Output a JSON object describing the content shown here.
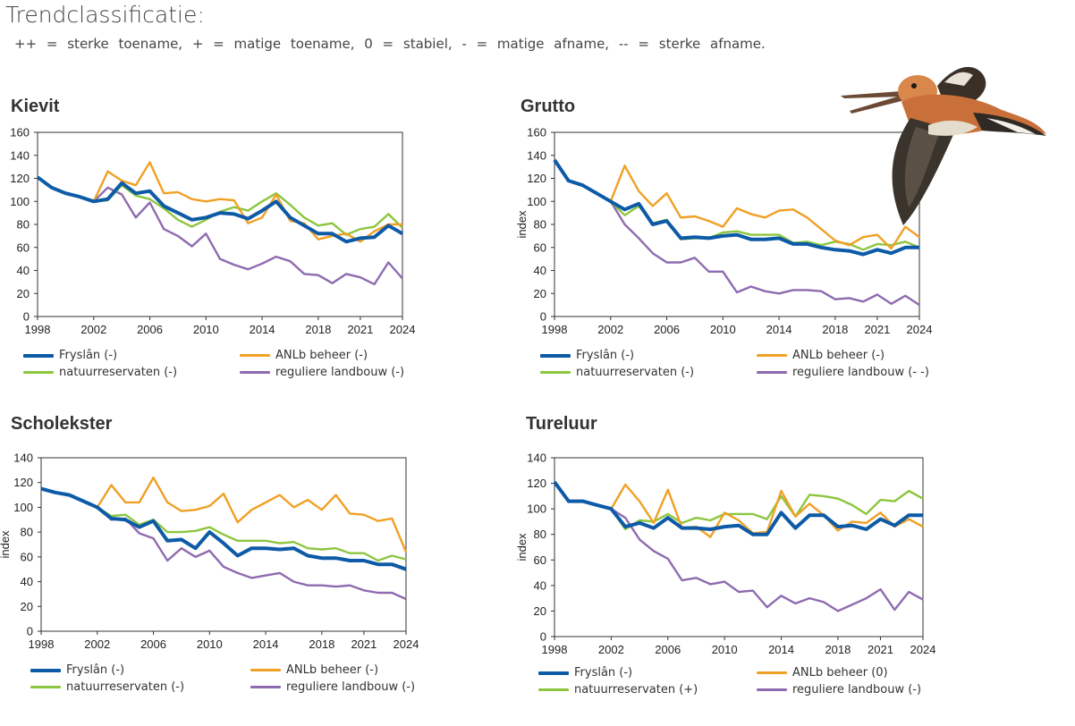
{
  "header": {
    "title": "Trendclassificatie:",
    "subtitle": "++ = sterke toename, + = matige toename, 0 = stabiel, - = matige afname, -- = sterke afname."
  },
  "colors": {
    "fryslan": "#0d5aa7",
    "anlb": "#f0a024",
    "natuur": "#8cc63f",
    "regulier": "#8e6bb0"
  },
  "chart_data": [
    {
      "type": "line",
      "title": "Kievit",
      "ylabel": "",
      "ylim": [
        0,
        160
      ],
      "yticks": [
        0,
        20,
        40,
        60,
        80,
        100,
        120,
        140,
        160
      ],
      "xticks": [
        "1998",
        "2002",
        "2006",
        "2010",
        "2014",
        "2018",
        "2021",
        "2024"
      ],
      "x": [
        1998,
        1999,
        2000,
        2001,
        2002,
        2003,
        2004,
        2005,
        2006,
        2007,
        2008,
        2009,
        2010,
        2011,
        2012,
        2013,
        2014,
        2015,
        2016,
        2017,
        2018,
        2019,
        2020,
        2021,
        2022,
        2023,
        2024
      ],
      "series": [
        {
          "key": "fryslan",
          "name": "Fryslân (-)",
          "values": [
            121,
            112,
            107,
            104,
            100,
            102,
            116,
            107,
            109,
            96,
            90,
            84,
            86,
            90,
            89,
            85,
            92,
            100,
            86,
            79,
            72,
            72,
            65,
            68,
            69,
            79,
            72
          ]
        },
        {
          "key": "anlb",
          "name": "ANLb beheer (-)",
          "values": [
            null,
            null,
            null,
            null,
            100,
            126,
            118,
            114,
            134,
            107,
            108,
            102,
            100,
            102,
            101,
            81,
            86,
            106,
            83,
            81,
            67,
            70,
            72,
            65,
            74,
            80,
            80
          ]
        },
        {
          "key": "natuur",
          "name": "natuurreservaten (-)",
          "values": [
            null,
            null,
            null,
            null,
            100,
            101,
            114,
            105,
            102,
            94,
            84,
            78,
            84,
            91,
            95,
            92,
            100,
            107,
            97,
            86,
            79,
            81,
            71,
            76,
            78,
            89,
            77
          ]
        },
        {
          "key": "regulier",
          "name": "reguliere landbouw (-)",
          "values": [
            null,
            null,
            null,
            null,
            100,
            112,
            106,
            86,
            99,
            76,
            70,
            61,
            72,
            50,
            45,
            41,
            46,
            52,
            48,
            37,
            36,
            29,
            37,
            34,
            28,
            47,
            33
          ]
        }
      ]
    },
    {
      "type": "line",
      "title": "Grutto",
      "ylabel": "index",
      "ylim": [
        0,
        160
      ],
      "yticks": [
        0,
        20,
        40,
        60,
        80,
        100,
        120,
        140,
        160
      ],
      "xticks": [
        "1998",
        "2002",
        "2006",
        "2010",
        "2014",
        "2018",
        "2021",
        "2024"
      ],
      "x": [
        1998,
        1999,
        2000,
        2001,
        2002,
        2003,
        2004,
        2005,
        2006,
        2007,
        2008,
        2009,
        2010,
        2011,
        2012,
        2013,
        2014,
        2015,
        2016,
        2017,
        2018,
        2019,
        2020,
        2021,
        2022,
        2023,
        2024
      ],
      "series": [
        {
          "key": "fryslan",
          "name": "Fryslân (-)",
          "values": [
            136,
            118,
            114,
            107,
            100,
            93,
            98,
            80,
            83,
            68,
            69,
            68,
            70,
            71,
            67,
            67,
            68,
            63,
            63,
            60,
            58,
            57,
            54,
            58,
            55,
            60,
            60
          ]
        },
        {
          "key": "anlb",
          "name": "ANLb beheer (-)",
          "values": [
            null,
            null,
            null,
            null,
            100,
            131,
            109,
            96,
            107,
            86,
            87,
            83,
            78,
            94,
            89,
            86,
            92,
            93,
            86,
            76,
            66,
            62,
            69,
            71,
            59,
            78,
            69
          ]
        },
        {
          "key": "natuur",
          "name": "natuurreservaten (-)",
          "values": [
            null,
            null,
            null,
            null,
            100,
            88,
            96,
            81,
            84,
            67,
            68,
            68,
            73,
            74,
            71,
            71,
            71,
            64,
            65,
            62,
            65,
            63,
            58,
            63,
            62,
            65,
            60
          ]
        },
        {
          "key": "regulier",
          "name": "reguliere landbouw (- -)",
          "values": [
            null,
            null,
            null,
            null,
            100,
            80,
            68,
            55,
            47,
            47,
            51,
            39,
            39,
            21,
            26,
            22,
            20,
            23,
            23,
            22,
            15,
            16,
            13,
            19,
            11,
            18,
            10
          ]
        }
      ]
    },
    {
      "type": "line",
      "title": "Scholekster",
      "ylabel": "index",
      "ylim": [
        0,
        140
      ],
      "yticks": [
        0,
        20,
        40,
        60,
        80,
        100,
        120,
        140
      ],
      "xticks": [
        "1998",
        "2002",
        "2006",
        "2010",
        "2014",
        "2018",
        "2021",
        "2024"
      ],
      "x": [
        1998,
        1999,
        2000,
        2001,
        2002,
        2003,
        2004,
        2005,
        2006,
        2007,
        2008,
        2009,
        2010,
        2011,
        2012,
        2013,
        2014,
        2015,
        2016,
        2017,
        2018,
        2019,
        2020,
        2021,
        2022,
        2023,
        2024
      ],
      "series": [
        {
          "key": "fryslan",
          "name": "Fryslân (-)",
          "values": [
            115,
            112,
            110,
            105,
            100,
            91,
            90,
            84,
            89,
            73,
            74,
            67,
            80,
            71,
            61,
            67,
            67,
            66,
            67,
            61,
            59,
            59,
            57,
            57,
            54,
            54,
            50
          ]
        },
        {
          "key": "anlb",
          "name": "ANLb beheer (-)",
          "values": [
            null,
            null,
            null,
            null,
            100,
            118,
            104,
            104,
            124,
            104,
            97,
            98,
            101,
            111,
            88,
            98,
            104,
            110,
            100,
            106,
            98,
            110,
            95,
            94,
            89,
            91,
            64
          ]
        },
        {
          "key": "natuur",
          "name": "natuurreservaten (-)",
          "values": [
            null,
            null,
            null,
            null,
            100,
            93,
            94,
            86,
            90,
            80,
            80,
            81,
            84,
            78,
            73,
            73,
            73,
            71,
            72,
            67,
            66,
            67,
            63,
            63,
            57,
            61,
            58
          ]
        },
        {
          "key": "regulier",
          "name": "reguliere landbouw (-)",
          "values": [
            null,
            null,
            null,
            null,
            100,
            90,
            91,
            79,
            75,
            57,
            67,
            60,
            65,
            52,
            47,
            43,
            45,
            47,
            40,
            37,
            37,
            36,
            37,
            33,
            31,
            31,
            26
          ]
        }
      ]
    },
    {
      "type": "line",
      "title": "Tureluur",
      "ylabel": "index",
      "ylim": [
        0,
        140
      ],
      "yticks": [
        0,
        20,
        40,
        60,
        80,
        100,
        120,
        140
      ],
      "xticks": [
        "1998",
        "2002",
        "2006",
        "2010",
        "2014",
        "2018",
        "2021",
        "2024"
      ],
      "x": [
        1998,
        1999,
        2000,
        2001,
        2002,
        2003,
        2004,
        2005,
        2006,
        2007,
        2008,
        2009,
        2010,
        2011,
        2012,
        2013,
        2014,
        2015,
        2016,
        2017,
        2018,
        2019,
        2020,
        2021,
        2022,
        2023,
        2024
      ],
      "series": [
        {
          "key": "fryslan",
          "name": "Fryslân (-)",
          "values": [
            121,
            106,
            106,
            103,
            100,
            86,
            89,
            85,
            93,
            85,
            85,
            84,
            86,
            87,
            80,
            80,
            97,
            85,
            95,
            95,
            86,
            87,
            84,
            92,
            87,
            95,
            95
          ]
        },
        {
          "key": "anlb",
          "name": "ANLb beheer (0)",
          "values": [
            null,
            null,
            null,
            null,
            100,
            119,
            106,
            89,
            115,
            85,
            86,
            78,
            97,
            91,
            81,
            82,
            114,
            94,
            104,
            95,
            83,
            90,
            89,
            97,
            86,
            92,
            86
          ]
        },
        {
          "key": "natuur",
          "name": "natuurreservaten (+)",
          "values": [
            null,
            null,
            null,
            null,
            100,
            84,
            91,
            90,
            96,
            89,
            93,
            91,
            96,
            96,
            96,
            92,
            110,
            94,
            111,
            110,
            108,
            103,
            96,
            107,
            106,
            114,
            108
          ]
        },
        {
          "key": "regulier",
          "name": "reguliere landbouw (-)",
          "values": [
            null,
            null,
            null,
            null,
            100,
            93,
            76,
            67,
            61,
            44,
            46,
            41,
            43,
            35,
            36,
            23,
            32,
            26,
            30,
            27,
            20,
            25,
            30,
            37,
            21,
            35,
            29
          ]
        }
      ]
    }
  ]
}
